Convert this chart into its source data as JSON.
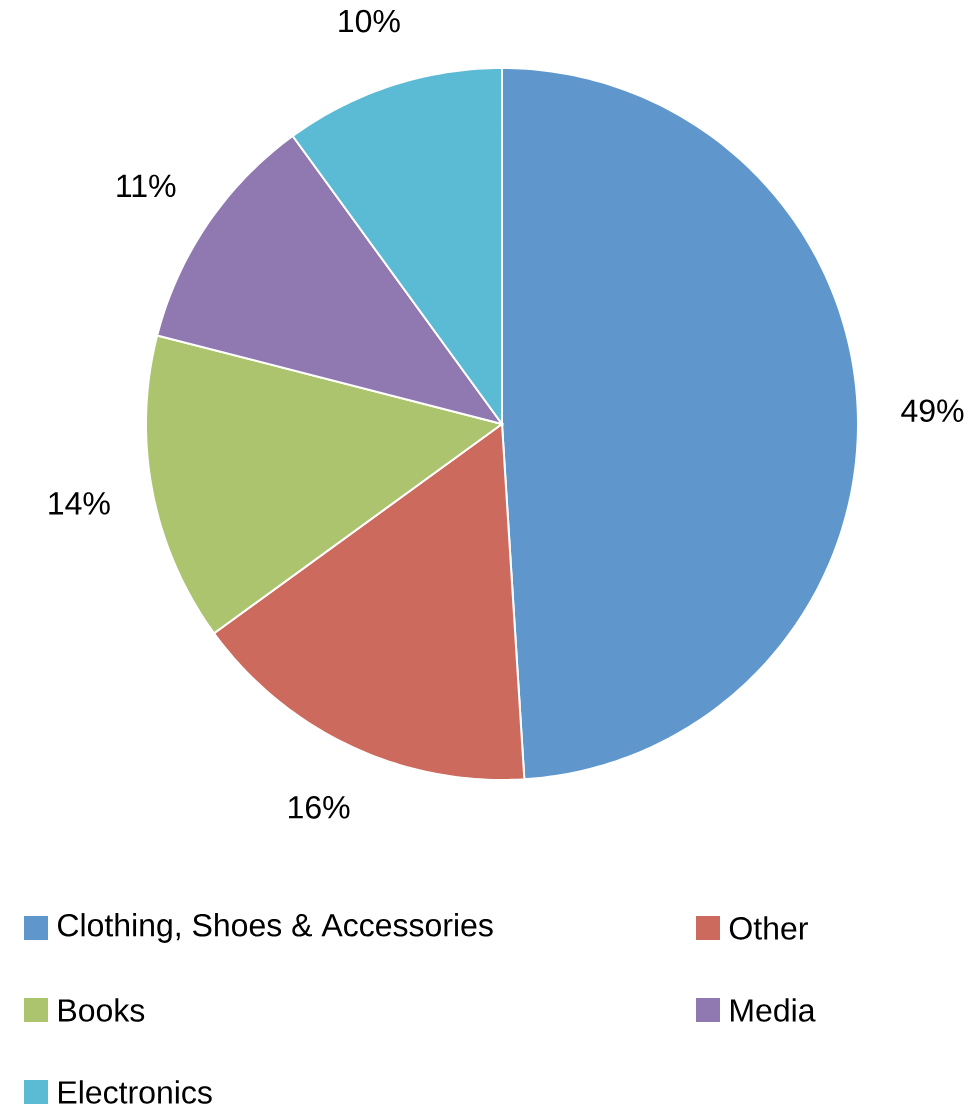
{
  "chart_data": {
    "type": "pie",
    "categories": [
      "Clothing, Shoes & Accessories",
      "Other",
      "Books",
      "Media",
      "Electronics"
    ],
    "values": [
      49,
      16,
      14,
      11,
      10
    ],
    "value_labels": [
      "49%",
      "16%",
      "14%",
      "11%",
      "10%"
    ],
    "colors": [
      "#5f97cc",
      "#cd6a5e",
      "#abc46d",
      "#9079b0",
      "#5bbad4"
    ],
    "legend": "bottom"
  }
}
